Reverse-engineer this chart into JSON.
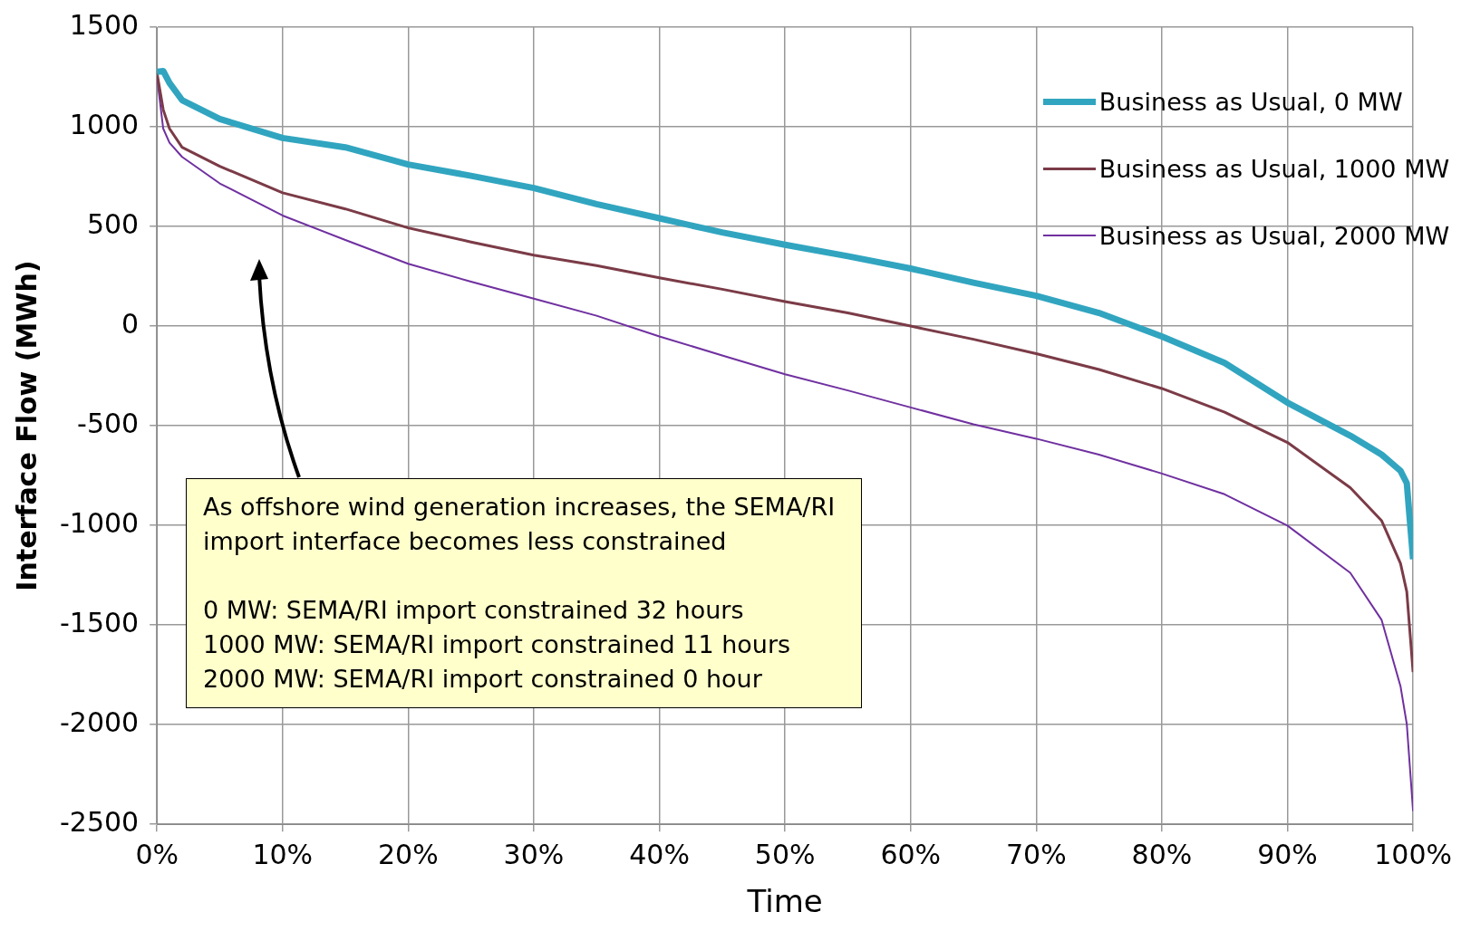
{
  "chart_data": {
    "type": "line",
    "xlabel": "Time",
    "ylabel": "Interface Flow (MWh)",
    "x": [
      0,
      0.5,
      1,
      2,
      5,
      10,
      15,
      20,
      25,
      30,
      35,
      40,
      45,
      50,
      55,
      60,
      65,
      70,
      75,
      80,
      85,
      90,
      95,
      97.5,
      99,
      99.5,
      100
    ],
    "series": [
      {
        "name": "Business as Usual, 0 MW",
        "color": "#31a5c0",
        "values": [
          1276,
          1280,
          1220,
          1134,
          1039,
          944,
          897,
          811,
          754,
          693,
          612,
          541,
          470,
          408,
          351,
          289,
          218,
          152,
          66,
          -52,
          -185,
          -384,
          -550,
          -645,
          -726,
          -788,
          -1170
        ]
      },
      {
        "name": "Business as Usual, 1000 MW",
        "color": "#7b3b47",
        "values": [
          1270,
          1086,
          991,
          897,
          802,
          669,
          588,
          493,
          422,
          356,
          304,
          242,
          185,
          123,
          66,
          0,
          -66,
          -138,
          -218,
          -313,
          -432,
          -584,
          -811,
          -977,
          -1191,
          -1333,
          -1736
        ]
      },
      {
        "name": "Business as Usual, 2000 MW",
        "color": "#7030a0",
        "values": [
          1250,
          991,
          920,
          849,
          716,
          555,
          432,
          313,
          223,
          138,
          52,
          -52,
          -147,
          -242,
          -323,
          -408,
          -493,
          -565,
          -645,
          -740,
          -844,
          -1001,
          -1238,
          -1475,
          -1807,
          -1997,
          -2434
        ]
      }
    ],
    "xlim": [
      0,
      100
    ],
    "xticks": [
      {
        "value": 0,
        "label": "0%"
      },
      {
        "value": 10,
        "label": "10%"
      },
      {
        "value": 20,
        "label": "20%"
      },
      {
        "value": 30,
        "label": "30%"
      },
      {
        "value": 40,
        "label": "40%"
      },
      {
        "value": 50,
        "label": "50%"
      },
      {
        "value": 60,
        "label": "60%"
      },
      {
        "value": 70,
        "label": "70%"
      },
      {
        "value": 80,
        "label": "80%"
      },
      {
        "value": 90,
        "label": "90%"
      },
      {
        "value": 100,
        "label": "100%"
      }
    ],
    "ylim": [
      -2500,
      1500
    ],
    "yticks": [
      -2500,
      -2000,
      -1500,
      -1000,
      -500,
      0,
      500,
      1000,
      1500
    ],
    "grid": true,
    "legend": "top right",
    "marker": "none",
    "line_style": "solid",
    "annotations": [
      "As offshore wind generation increases, the SEMA/RI import interface becomes less constrained",
      "0 MW: SEMA/RI import constrained 32 hours",
      "1000 MW: SEMA/RI import constrained 11 hours",
      "2000 MW: SEMA/RI import constrained 0 hour"
    ]
  }
}
